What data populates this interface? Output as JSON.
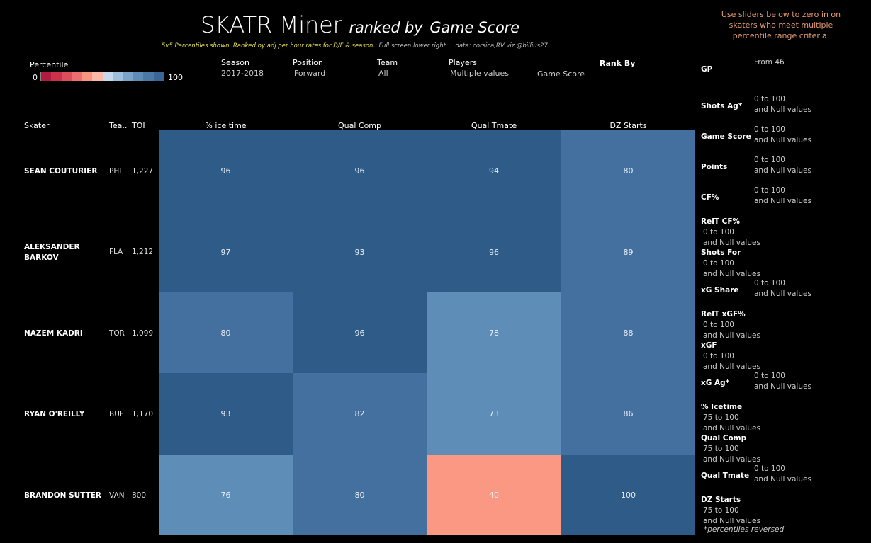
{
  "header": {
    "title_main": "SKATR Miner",
    "title_ranked": "ranked by",
    "title_metric": "Game Score",
    "subtitle_highlight": "5v5 Percentiles shown. Ranked by adj per hour rates for D/F & season.",
    "subtitle_fullscreen": "Full screen lower right",
    "subtitle_credit": "data: corsica,RV  viz @billius27",
    "note": "Use sliders below to zero in on skaters who meet multiple percentile range criteria."
  },
  "legend": {
    "title": "Percentile",
    "min": "0",
    "max": "100"
  },
  "filters": {
    "season": {
      "label": "Season",
      "value": "2017-2018"
    },
    "position": {
      "label": "Position",
      "value": "Forward"
    },
    "team": {
      "label": "Team",
      "value": "All"
    },
    "players": {
      "label": "Players",
      "value": "Multiple values"
    },
    "rank_value": "Game Score",
    "rank_by": {
      "label": "Rank By"
    }
  },
  "table": {
    "headers": {
      "skater": "Skater",
      "team": "Tea..",
      "toi": "TOI",
      "c1": "% ice time",
      "c2": "Qual Comp",
      "c3": "Qual Tmate",
      "c4": "DZ Starts"
    },
    "rows": [
      {
        "name": "SEAN COUTURIER",
        "team": "PHI",
        "toi": "1,227",
        "v": [
          "96",
          "96",
          "94",
          "80"
        ]
      },
      {
        "name": "ALEKSANDER BARKOV",
        "team": "FLA",
        "toi": "1,212",
        "v": [
          "97",
          "93",
          "96",
          "89"
        ]
      },
      {
        "name": "NAZEM KADRI",
        "team": "TOR",
        "toi": "1,099",
        "v": [
          "80",
          "96",
          "78",
          "88"
        ]
      },
      {
        "name": "RYAN O'REILLY",
        "team": "BUF",
        "toi": "1,170",
        "v": [
          "93",
          "82",
          "73",
          "86"
        ]
      },
      {
        "name": "BRANDON SUTTER",
        "team": "VAN",
        "toi": "800",
        "v": [
          "76",
          "80",
          "40",
          "100"
        ]
      }
    ]
  },
  "sliders": {
    "gp": {
      "label": "GP",
      "value": "From 46"
    },
    "shots_ag": {
      "label": "Shots Ag*",
      "v1": "0 to 100",
      "v2": "and Null values"
    },
    "game_score": {
      "label": "Game Score",
      "v1": "0 to 100",
      "v2": "and Null values"
    },
    "points": {
      "label": "Points",
      "v1": "0 to 100",
      "v2": "and Null values"
    },
    "cf": {
      "label": "CF%",
      "v1": "0 to 100",
      "v2": "and Null values"
    },
    "relt_cf": {
      "label": "RelT CF%",
      "v1": "0 to 100",
      "v2": "and Null values"
    },
    "shots_for": {
      "label": "Shots For",
      "v1": "0 to 100",
      "v2": "and Null values"
    },
    "xg_share": {
      "label": "xG Share",
      "v1": "0 to 100",
      "v2": "and Null values"
    },
    "relt_xgf": {
      "label": "RelT xGF%",
      "v1": "0 to 100",
      "v2": "and Null values"
    },
    "xgf": {
      "label": "xGF",
      "v1": "0 to 100",
      "v2": "and Null values"
    },
    "xg_ag": {
      "label": "xG Ag*",
      "v1": "0 to 100",
      "v2": "and Null values"
    },
    "icetime": {
      "label": "% Icetime",
      "v1": "75 to 100",
      "v2": "and Null values"
    },
    "qual_comp": {
      "label": "Qual Comp",
      "v1": "75 to 100",
      "v2": "and Null values"
    },
    "qual_tmate": {
      "label": "Qual Tmate",
      "v1": "0 to 100",
      "v2": "and Null values"
    },
    "dz_starts": {
      "label": "DZ Starts",
      "v1": "75 to 100",
      "v2": "and Null values"
    },
    "footnote": "*percentiles reversed"
  },
  "colors": {
    "c90": "#2e5b87",
    "c80": "#4470a0",
    "c70": "#5e8db8",
    "c40": "#fb9884"
  }
}
